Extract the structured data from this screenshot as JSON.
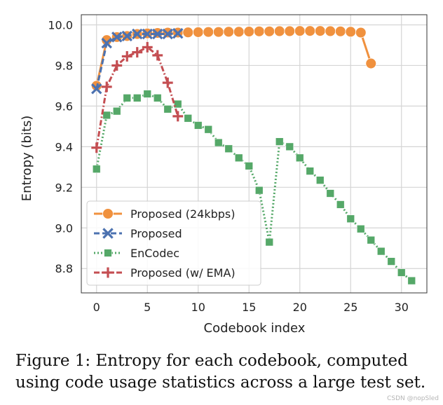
{
  "chart_data": {
    "type": "line",
    "title": "",
    "xlabel": "Codebook index",
    "ylabel": "Entropy (bits)",
    "xlim": [
      -1.5,
      32.5
    ],
    "ylim": [
      8.68,
      10.05
    ],
    "xticks": [
      0,
      5,
      10,
      15,
      20,
      25,
      30
    ],
    "yticks": [
      8.8,
      9.0,
      9.2,
      9.4,
      9.6,
      9.8,
      10.0
    ],
    "xtick_labels": [
      "0",
      "5",
      "10",
      "15",
      "20",
      "25",
      "30"
    ],
    "ytick_labels": [
      "8.8",
      "9.0",
      "9.2",
      "9.4",
      "9.6",
      "9.8",
      "10.0"
    ],
    "grid": true,
    "legend_position": "lower-left",
    "series": [
      {
        "name": "Proposed (24kbps)",
        "color": "#f0913e",
        "marker": "circle",
        "line": "solid",
        "x": [
          0,
          1,
          2,
          3,
          4,
          5,
          6,
          7,
          8,
          9,
          10,
          11,
          12,
          13,
          14,
          15,
          16,
          17,
          18,
          19,
          20,
          21,
          22,
          23,
          24,
          25,
          26,
          27
        ],
        "values": [
          9.7,
          9.925,
          9.94,
          9.945,
          9.955,
          9.958,
          9.96,
          9.962,
          9.962,
          9.963,
          9.964,
          9.965,
          9.965,
          9.966,
          9.966,
          9.967,
          9.968,
          9.968,
          9.969,
          9.969,
          9.97,
          9.97,
          9.97,
          9.969,
          9.968,
          9.966,
          9.962,
          9.81
        ]
      },
      {
        "name": "Proposed",
        "color": "#4c72b0",
        "marker": "x",
        "line": "dashed",
        "x": [
          0,
          1,
          2,
          3,
          4,
          5,
          6,
          7,
          8
        ],
        "values": [
          9.685,
          9.91,
          9.94,
          9.945,
          9.955,
          9.955,
          9.955,
          9.955,
          9.958
        ]
      },
      {
        "name": "EnCodec",
        "color": "#55a868",
        "marker": "square",
        "line": "dotted",
        "x": [
          0,
          1,
          2,
          3,
          4,
          5,
          6,
          7,
          8,
          9,
          10,
          11,
          12,
          13,
          14,
          15,
          16,
          17,
          18,
          19,
          20,
          21,
          22,
          23,
          24,
          25,
          26,
          27,
          28,
          29,
          30,
          31
        ],
        "values": [
          9.29,
          9.555,
          9.575,
          9.64,
          9.64,
          9.66,
          9.64,
          9.585,
          9.61,
          9.54,
          9.505,
          9.485,
          9.42,
          9.39,
          9.345,
          9.305,
          9.185,
          8.93,
          9.425,
          9.4,
          9.345,
          9.28,
          9.235,
          9.17,
          9.115,
          9.045,
          8.995,
          8.94,
          8.885,
          8.835,
          8.78,
          8.74
        ]
      },
      {
        "name": "Proposed (w/ EMA)",
        "color": "#c44e52",
        "marker": "plus",
        "line": "dashdot",
        "x": [
          0,
          1,
          2,
          3,
          4,
          5,
          6,
          7,
          8
        ],
        "values": [
          9.395,
          9.695,
          9.8,
          9.845,
          9.865,
          9.89,
          9.85,
          9.715,
          9.55
        ]
      }
    ]
  },
  "caption": {
    "line1": "Figure 1: Entropy for each codebook, computed",
    "line2": "using code usage statistics across a large test set."
  },
  "watermark": "CSDN @nopSled"
}
